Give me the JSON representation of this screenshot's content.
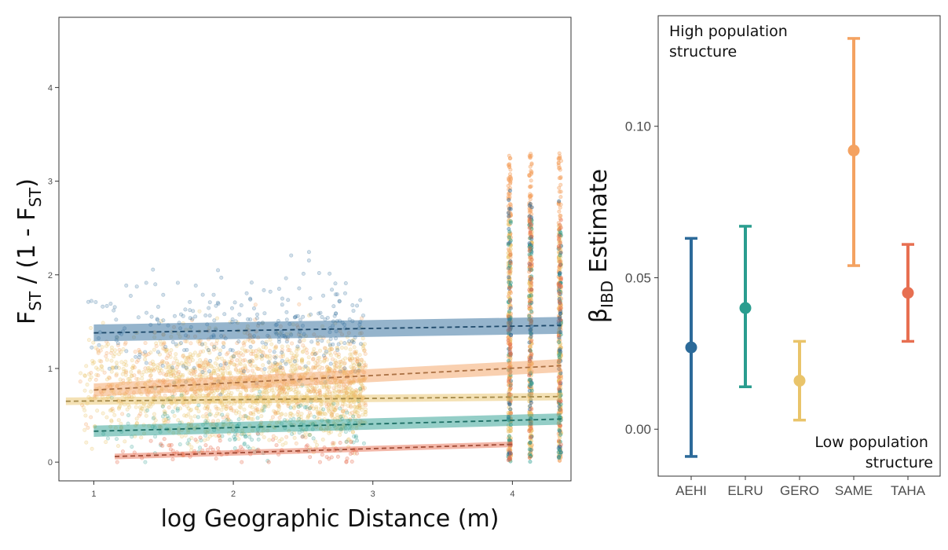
{
  "chart_data": [
    {
      "type": "scatter",
      "xlabel": "log Geographic Distance (m)",
      "ylabel": {
        "main": "F",
        "sub1": "ST",
        "mid": " / (1 - F",
        "sub2": "ST",
        "end": ")"
      },
      "xlim": [
        0.75,
        4.42
      ],
      "ylim": [
        -0.2,
        4.75
      ],
      "x_ticks": [
        1,
        2,
        3,
        4
      ],
      "y_ticks": [
        0,
        1,
        2,
        3,
        4
      ],
      "grid": false,
      "series": [
        {
          "name": "AEHI",
          "color": "#2c6a99",
          "alpha": 0.35,
          "fit": {
            "x": [
              1.0,
              4.35
            ],
            "y": [
              1.38,
              1.46
            ]
          },
          "band": 0.09
        },
        {
          "name": "ELRU",
          "color": "#2a9d8f",
          "alpha": 0.35,
          "fit": {
            "x": [
              1.0,
              4.35
            ],
            "y": [
              0.33,
              0.46
            ]
          },
          "band": 0.06
        },
        {
          "name": "GERO",
          "color": "#e9c46a",
          "alpha": 0.4,
          "fit": {
            "x": [
              0.8,
              4.35
            ],
            "y": [
              0.65,
              0.7
            ]
          },
          "band": 0.04
        },
        {
          "name": "SAME",
          "color": "#f4a261",
          "alpha": 0.4,
          "fit": {
            "x": [
              1.0,
              4.35
            ],
            "y": [
              0.77,
              1.03
            ]
          },
          "band": 0.07
        },
        {
          "name": "TAHA",
          "color": "#e76f51",
          "alpha": 0.45,
          "fit": {
            "x": [
              1.15,
              4.0
            ],
            "y": [
              0.06,
              0.19
            ]
          },
          "band": 0.03
        }
      ]
    },
    {
      "type": "errorbar",
      "ylabel": {
        "main": "β",
        "sub": "IBD",
        "end": " Estimate"
      },
      "ylim": [
        -0.0155,
        0.1365
      ],
      "y_ticks": [
        0.0,
        0.05,
        0.1
      ],
      "y_tick_labels": [
        "0.00",
        "0.05",
        "0.10"
      ],
      "categories": [
        "AEHI",
        "ELRU",
        "GERO",
        "SAME",
        "TAHA"
      ],
      "estimates": [
        0.027,
        0.04,
        0.016,
        0.092,
        0.045
      ],
      "lower": [
        -0.009,
        0.014,
        0.003,
        0.054,
        0.029
      ],
      "upper": [
        0.063,
        0.067,
        0.029,
        0.129,
        0.061
      ],
      "colors": [
        "#2c6a99",
        "#2a9d8f",
        "#e9c46a",
        "#f4a261",
        "#e76f51"
      ],
      "annotations": {
        "high_line1": "High population",
        "high_line2": "structure",
        "low_line1": "Low population",
        "low_line2": "structure"
      }
    }
  ]
}
